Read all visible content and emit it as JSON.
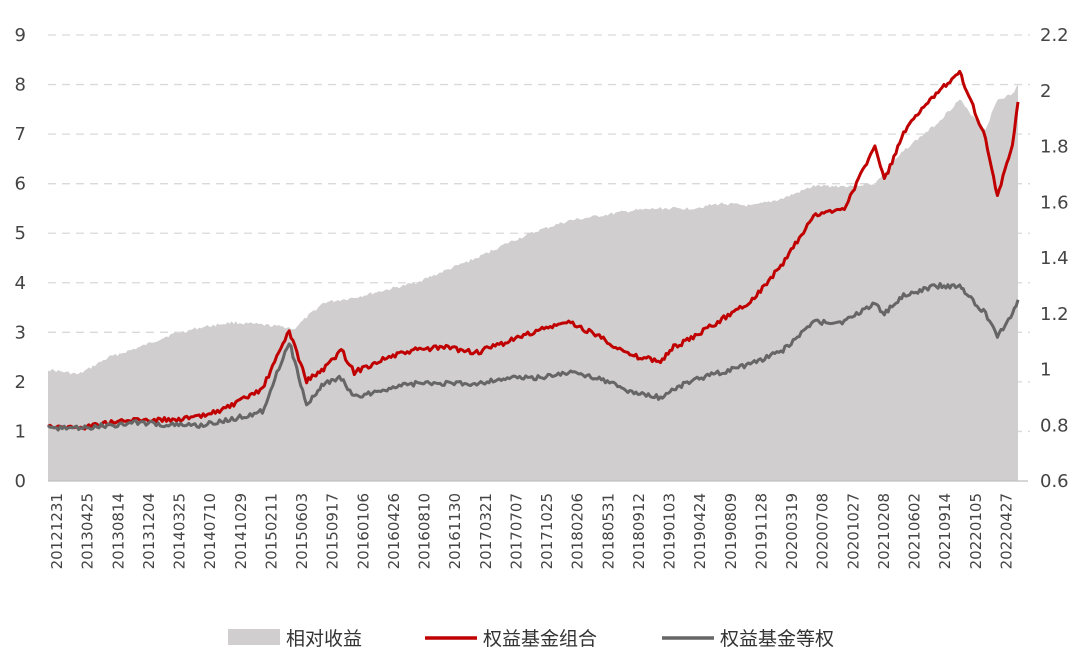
{
  "chart_data": {
    "type": "area+line",
    "title": "",
    "xlabel": "",
    "ylabel_left": "",
    "ylabel_right": "",
    "grid": true,
    "legend_position": "bottom",
    "y_left": {
      "range": [
        0,
        9
      ],
      "ticks": [
        "0",
        "1",
        "2",
        "3",
        "4",
        "5",
        "6",
        "7",
        "8",
        "9"
      ]
    },
    "y_right": {
      "range": [
        0.6,
        2.2
      ],
      "ticks": [
        "0.6",
        "0.8",
        "1",
        "1.2",
        "1.4",
        "1.6",
        "1.8",
        "2",
        "2.2"
      ]
    },
    "x_tick_labels": [
      "20121231",
      "20130425",
      "20130814",
      "20131204",
      "20140325",
      "20140710",
      "20141029",
      "20150211",
      "20150603",
      "20150917",
      "20160106",
      "20160426",
      "20160810",
      "20161130",
      "20170321",
      "20170707",
      "20171025",
      "20180206",
      "20180531",
      "20180912",
      "20190103",
      "20190424",
      "20190809",
      "20191128",
      "20200319",
      "20200708",
      "20201027",
      "20210208",
      "20210602",
      "20210914",
      "20220105",
      "20220427"
    ],
    "series": [
      {
        "name": "相对收益",
        "axis": "left",
        "style": "area",
        "color": "#d0cece",
        "x": [
          "20121231",
          "20130425",
          "20130814",
          "20131204",
          "20140325",
          "20140710",
          "20141029",
          "20150211",
          "20150520",
          "20150603",
          "20150720",
          "20150917",
          "20160106",
          "20160426",
          "20160810",
          "20161130",
          "20170321",
          "20170707",
          "20171025",
          "20180206",
          "20180531",
          "20180912",
          "20190103",
          "20190424",
          "20190809",
          "20191128",
          "20200319",
          "20200708",
          "20201027",
          "20210208",
          "20210602",
          "20210914",
          "20211210",
          "20220105",
          "20220315",
          "20220427",
          "20220620",
          "20220710"
        ],
        "values": [
          2.25,
          2.15,
          2.5,
          2.7,
          2.95,
          3.1,
          3.2,
          3.15,
          3.1,
          3.05,
          3.3,
          3.6,
          3.7,
          3.85,
          4.0,
          4.25,
          4.5,
          4.8,
          5.05,
          5.25,
          5.35,
          5.45,
          5.5,
          5.5,
          5.6,
          5.55,
          5.7,
          5.95,
          5.95,
          6.0,
          6.7,
          7.2,
          7.7,
          7.5,
          7.1,
          7.7,
          7.8,
          8.0
        ]
      },
      {
        "name": "权益基金组合",
        "axis": "right",
        "style": "line",
        "color": "#c00000",
        "x": [
          "20121231",
          "20130425",
          "20130814",
          "20131204",
          "20140325",
          "20140710",
          "20141029",
          "20150211",
          "20150520",
          "20150603",
          "20150720",
          "20150917",
          "20151120",
          "20160106",
          "20160426",
          "20160810",
          "20161130",
          "20170321",
          "20170707",
          "20171025",
          "20180206",
          "20180531",
          "20180912",
          "20190103",
          "20190220",
          "20190424",
          "20190809",
          "20191128",
          "20200319",
          "20200708",
          "20201027",
          "20210208",
          "20210315",
          "20210602",
          "20210914",
          "20211210",
          "20220105",
          "20220315",
          "20220427",
          "20220620",
          "20220710"
        ],
        "values": [
          0.8,
          0.79,
          0.81,
          0.82,
          0.82,
          0.83,
          0.87,
          0.93,
          1.14,
          1.1,
          0.96,
          1.0,
          1.07,
          0.99,
          1.04,
          1.07,
          1.08,
          1.06,
          1.1,
          1.14,
          1.17,
          1.12,
          1.05,
          1.03,
          1.08,
          1.11,
          1.18,
          1.25,
          1.38,
          1.55,
          1.58,
          1.8,
          1.68,
          1.86,
          1.99,
          2.07,
          2.0,
          1.83,
          1.62,
          1.8,
          1.96
        ]
      },
      {
        "name": "权益基金等权",
        "axis": "right",
        "style": "line",
        "color": "#666666",
        "x": [
          "20121231",
          "20130425",
          "20130814",
          "20131204",
          "20140325",
          "20140710",
          "20141029",
          "20150211",
          "20150520",
          "20150603",
          "20150720",
          "20150917",
          "20151120",
          "20160106",
          "20160426",
          "20160810",
          "20161130",
          "20170321",
          "20170707",
          "20171025",
          "20180206",
          "20180531",
          "20180912",
          "20190103",
          "20190220",
          "20190424",
          "20190809",
          "20191128",
          "20200319",
          "20200708",
          "20201027",
          "20210208",
          "20210315",
          "20210602",
          "20210914",
          "20211210",
          "20220105",
          "20220315",
          "20220427",
          "20220620",
          "20220710"
        ],
        "values": [
          0.79,
          0.79,
          0.8,
          0.81,
          0.8,
          0.8,
          0.82,
          0.85,
          1.1,
          1.05,
          0.87,
          0.95,
          0.97,
          0.9,
          0.93,
          0.95,
          0.95,
          0.95,
          0.97,
          0.97,
          0.99,
          0.97,
          0.92,
          0.9,
          0.93,
          0.96,
          0.99,
          1.02,
          1.07,
          1.17,
          1.17,
          1.24,
          1.2,
          1.27,
          1.3,
          1.3,
          1.27,
          1.2,
          1.12,
          1.2,
          1.25
        ]
      }
    ]
  }
}
